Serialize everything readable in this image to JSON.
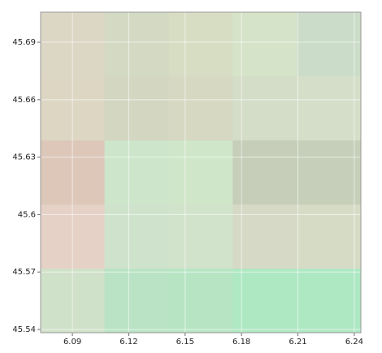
{
  "chart_data": {
    "type": "heatmap",
    "x_edges": [
      6.0731,
      6.1072,
      6.1413,
      6.1754,
      6.2095,
      6.2435
    ],
    "y_edges": [
      45.5383,
      45.5718,
      45.6053,
      45.6388,
      45.6722,
      45.7057
    ],
    "colors": [
      [
        "#d0e1c9",
        "#b9e3c4",
        "#b7e5c4",
        "#ade8c2",
        "#ade8c3"
      ],
      [
        "#e5d1c6",
        "#cfe3cc",
        "#d1e3cb",
        "#d5d9c5",
        "#d6dbc6"
      ],
      [
        "#dcc7b9",
        "#cde6cb",
        "#d0e6c9",
        "#c6cdb8",
        "#c6cfb9"
      ],
      [
        "#dcd6c3",
        "#d3d6c0",
        "#d6d8c2",
        "#d4ddc8",
        "#d5dec9"
      ],
      [
        "#dcd6c4",
        "#d3d9c3",
        "#d6ddc3",
        "#d5e3c8",
        "#cbdcc8"
      ]
    ],
    "xlim": [
      6.0731,
      6.2435
    ],
    "ylim": [
      45.5383,
      45.7057
    ],
    "xticks": [
      6.09,
      6.12,
      6.15,
      6.18,
      6.21,
      6.24
    ],
    "yticks": [
      45.54,
      45.57,
      45.6,
      45.63,
      45.66,
      45.69
    ],
    "grid": true
  }
}
